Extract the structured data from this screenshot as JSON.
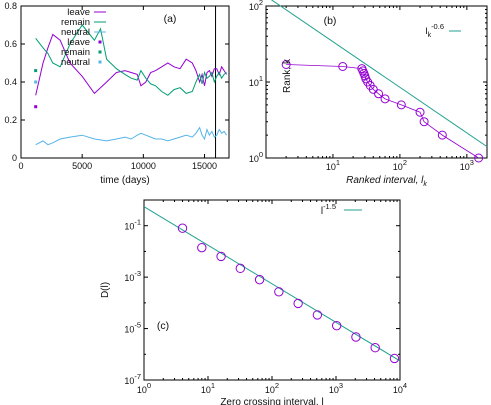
{
  "colors": {
    "purple": "#9400d3",
    "green": "#009e73",
    "blue": "#56b4e9",
    "fitline": "#20a090",
    "axis": "#000000"
  },
  "chart_data": [
    {
      "panel": "(a)",
      "type": "line",
      "xlabel": "time (days)",
      "ylabel": "",
      "xlim": [
        0,
        17000
      ],
      "ylim": [
        0,
        0.8
      ],
      "xticks": [
        0,
        5000,
        10000,
        15000
      ],
      "yticks": [
        0,
        0.2,
        0.4,
        0.6,
        0.8
      ],
      "vline_x": 15900,
      "grid": false,
      "legend_position": "top-right",
      "legend": [
        {
          "label": "leave",
          "style": "line",
          "color": "#9400d3"
        },
        {
          "label": "remain",
          "style": "line",
          "color": "#009e73"
        },
        {
          "label": "neutral",
          "style": "line",
          "color": "#56b4e9"
        },
        {
          "label": "leave",
          "style": "point",
          "color": "#9400d3"
        },
        {
          "label": "remain",
          "style": "point",
          "color": "#009e73"
        },
        {
          "label": "neutral",
          "style": "point",
          "color": "#56b4e9"
        }
      ],
      "series": [
        {
          "name": "leave",
          "style": "line",
          "color": "#9400d3",
          "x": [
            1200,
            1800,
            2200,
            2600,
            3200,
            4000,
            5000,
            6000,
            7000,
            7800,
            8500,
            9000,
            9500,
            9800,
            10200,
            10600,
            11000,
            11500,
            12000,
            12500,
            13000,
            13500,
            14000,
            14300,
            14600,
            14800,
            15000,
            15200,
            15400,
            15600,
            15800,
            16000,
            16200,
            16400,
            16600,
            16800
          ],
          "y": [
            0.33,
            0.5,
            0.58,
            0.65,
            0.62,
            0.5,
            0.43,
            0.34,
            0.4,
            0.45,
            0.46,
            0.45,
            0.44,
            0.38,
            0.4,
            0.45,
            0.46,
            0.48,
            0.5,
            0.48,
            0.47,
            0.52,
            0.5,
            0.46,
            0.4,
            0.44,
            0.38,
            0.45,
            0.46,
            0.43,
            0.47,
            0.47,
            0.44,
            0.48,
            0.46,
            0.44
          ]
        },
        {
          "name": "remain",
          "style": "line",
          "color": "#009e73",
          "x": [
            1200,
            1800,
            2200,
            2600,
            3200,
            4000,
            5000,
            6000,
            6500,
            7000,
            7800,
            8500,
            9000,
            9500,
            9800,
            10200,
            10600,
            11000,
            11500,
            12000,
            12500,
            13000,
            13500,
            14000,
            14300,
            14600,
            14800,
            15000,
            15200,
            15400,
            15600,
            15800,
            16000,
            16200,
            16400,
            16600,
            16800
          ],
          "y": [
            0.63,
            0.58,
            0.55,
            0.5,
            0.48,
            0.6,
            0.7,
            0.62,
            0.68,
            0.52,
            0.47,
            0.44,
            0.42,
            0.41,
            0.46,
            0.42,
            0.39,
            0.38,
            0.35,
            0.33,
            0.36,
            0.37,
            0.34,
            0.35,
            0.4,
            0.44,
            0.39,
            0.45,
            0.42,
            0.43,
            0.45,
            0.4,
            0.43,
            0.45,
            0.42,
            0.44,
            0.45
          ]
        },
        {
          "name": "neutral",
          "style": "line",
          "color": "#56b4e9",
          "x": [
            1200,
            1800,
            2200,
            2600,
            3200,
            4000,
            5000,
            6000,
            7000,
            7800,
            8500,
            9000,
            9500,
            9800,
            10200,
            10600,
            11000,
            11500,
            12000,
            12500,
            13000,
            13500,
            14000,
            14300,
            14600,
            14800,
            15000,
            15200,
            15400,
            15600,
            15800,
            16000,
            16200,
            16400,
            16600,
            16800
          ],
          "y": [
            0.07,
            0.09,
            0.07,
            0.08,
            0.1,
            0.11,
            0.12,
            0.1,
            0.09,
            0.1,
            0.11,
            0.1,
            0.12,
            0.13,
            0.12,
            0.11,
            0.1,
            0.1,
            0.09,
            0.1,
            0.11,
            0.12,
            0.11,
            0.13,
            0.16,
            0.12,
            0.1,
            0.15,
            0.12,
            0.14,
            0.11,
            0.12,
            0.15,
            0.13,
            0.14,
            0.12
          ]
        },
        {
          "name": "leave",
          "style": "point",
          "color": "#9400d3",
          "x": [
            1200
          ],
          "y": [
            0.27
          ]
        },
        {
          "name": "remain",
          "style": "point",
          "color": "#009e73",
          "x": [
            1200
          ],
          "y": [
            0.46
          ]
        },
        {
          "name": "neutral",
          "style": "point",
          "color": "#56b4e9",
          "x": [
            1200
          ],
          "y": [
            0.4
          ]
        }
      ]
    },
    {
      "panel": "(b)",
      "type": "scatter",
      "xscale": "log",
      "yscale": "log",
      "xlabel": "Ranked interval, l_k",
      "ylabel": "Rank, k",
      "xlim": [
        1,
        2000
      ],
      "ylim": [
        1,
        100
      ],
      "xtick_labels": [
        "10^1",
        "10^2",
        "10^3"
      ],
      "ytick_labels": [
        "10^0",
        "10^1",
        "10^2"
      ],
      "grid": false,
      "legend_position": "top-right",
      "fit": {
        "label": "l_k^-0.6",
        "exponent": -0.6,
        "prefactor": 135,
        "color": "#20a090"
      },
      "series": [
        {
          "name": "data",
          "style": "circles+line",
          "color": "#9400d3",
          "x": [
            2,
            14,
            27,
            28,
            29,
            30,
            31,
            33,
            36,
            40,
            48,
            60,
            105,
            200,
            230,
            430,
            1500
          ],
          "y": [
            17,
            16,
            15,
            14,
            13,
            12,
            11,
            10,
            9,
            8,
            7,
            6,
            5,
            4,
            3,
            2,
            1
          ]
        }
      ]
    },
    {
      "panel": "(c)",
      "type": "scatter",
      "xscale": "log",
      "yscale": "log",
      "xlabel": "Zero crossing interval, l",
      "ylabel": "D(l)",
      "xlim": [
        1,
        10000
      ],
      "ylim": [
        1e-07,
        1
      ],
      "xtick_labels": [
        "10^0",
        "10^1",
        "10^2",
        "10^3",
        "10^4"
      ],
      "ytick_labels": [
        "10^-7",
        "10^-5",
        "10^-3",
        "10^-1"
      ],
      "grid": false,
      "legend_position": "top-right",
      "fit": {
        "label": "l^-1.5",
        "exponent": -1.5,
        "prefactor": 0.55,
        "color": "#20a090"
      },
      "series": [
        {
          "name": "data",
          "style": "circles",
          "color": "#9400d3",
          "x": [
            4,
            8,
            16,
            32,
            64,
            128,
            256,
            512,
            1024,
            2048,
            4096,
            8192
          ],
          "y": [
            0.08,
            0.014,
            0.0064,
            0.0022,
            0.0008,
            0.00027,
            9.5e-05,
            3.4e-05,
            1.3e-05,
            4.7e-06,
            1.8e-06,
            6.9e-07
          ]
        }
      ]
    }
  ]
}
